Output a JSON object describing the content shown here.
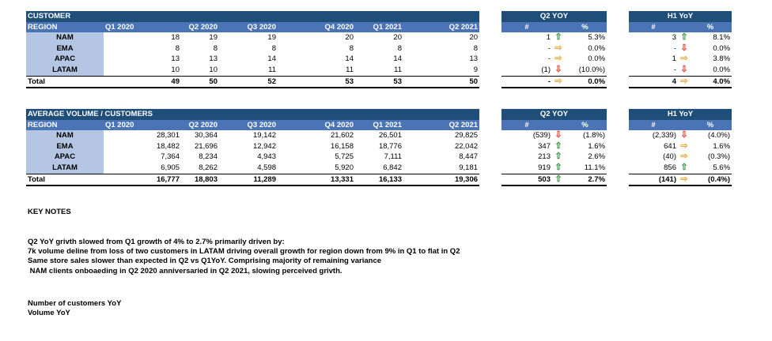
{
  "customer": {
    "title": "CUSTOMER",
    "region_label": "REGION",
    "quarters": [
      "Q1 2020",
      "Q2 2020",
      "Q3 2020",
      "Q4 2020",
      "Q1 2021",
      "Q2 2021"
    ],
    "rows": [
      {
        "region": "NAM",
        "v": [
          "18",
          "19",
          "19",
          "20",
          "20",
          "20"
        ]
      },
      {
        "region": "EMA",
        "v": [
          "8",
          "8",
          "8",
          "8",
          "8",
          "8"
        ]
      },
      {
        "region": "APAC",
        "v": [
          "13",
          "13",
          "14",
          "14",
          "14",
          "13"
        ]
      },
      {
        "region": "LATAM",
        "v": [
          "10",
          "10",
          "11",
          "11",
          "11",
          "9"
        ]
      }
    ],
    "total": {
      "label": "Total",
      "v": [
        "49",
        "50",
        "52",
        "53",
        "53",
        "50"
      ]
    }
  },
  "customer_q2yoy": {
    "title": "Q2 YOY",
    "num_label": "#",
    "pct_label": "%",
    "rows": [
      {
        "n": "1",
        "arrow": "up",
        "p": "5.3%"
      },
      {
        "n": "-",
        "arrow": "right",
        "p": "0.0%"
      },
      {
        "n": "-",
        "arrow": "right",
        "p": "0.0%"
      },
      {
        "n": "(1)",
        "arrow": "down",
        "p": "(10.0%)"
      }
    ],
    "total": {
      "n": "-",
      "arrow": "right",
      "p": "0.0%"
    }
  },
  "customer_h1yoy": {
    "title": "H1 YoY",
    "num_label": "#",
    "pct_label": "%",
    "rows": [
      {
        "n": "3",
        "arrow": "up",
        "p": "8.1%"
      },
      {
        "n": "-",
        "arrow": "down",
        "p": "0.0%"
      },
      {
        "n": "1",
        "arrow": "right",
        "p": "3.8%"
      },
      {
        "n": "-",
        "arrow": "down",
        "p": "0.0%"
      }
    ],
    "total": {
      "n": "4",
      "arrow": "right",
      "p": "4.0%"
    }
  },
  "volume": {
    "title": "AVERAGE VOLUME / CUSTOMERS",
    "region_label": "REGION",
    "quarters": [
      "Q1 2020",
      "Q2 2020",
      "Q3 2020",
      "Q4 2020",
      "Q1 2021",
      "Q2 2021"
    ],
    "rows": [
      {
        "region": "NAM",
        "v": [
          "28,301",
          "30,364",
          "19,142",
          "21,602",
          "26,501",
          "29,825"
        ]
      },
      {
        "region": "EMA",
        "v": [
          "18,482",
          "21,696",
          "12,942",
          "16,158",
          "18,776",
          "22,042"
        ]
      },
      {
        "region": "APAC",
        "v": [
          "7,364",
          "8,234",
          "4,943",
          "5,725",
          "7,111",
          "8,447"
        ]
      },
      {
        "region": "LATAM",
        "v": [
          "6,905",
          "8,262",
          "4,598",
          "5,920",
          "6,842",
          "9,181"
        ]
      }
    ],
    "total": {
      "label": "Total",
      "v": [
        "16,777",
        "18,803",
        "11,289",
        "13,331",
        "16,133",
        "19,306"
      ]
    }
  },
  "volume_q2yoy": {
    "title": "Q2 YOY",
    "num_label": "#",
    "pct_label": "%",
    "rows": [
      {
        "n": "(539)",
        "arrow": "down",
        "p": "(1.8%)"
      },
      {
        "n": "347",
        "arrow": "up",
        "p": "1.6%"
      },
      {
        "n": "213",
        "arrow": "up",
        "p": "2.6%"
      },
      {
        "n": "919",
        "arrow": "up",
        "p": "11.1%"
      }
    ],
    "total": {
      "n": "503",
      "arrow": "up",
      "p": "2.7%"
    }
  },
  "volume_h1yoy": {
    "title": "H1 YoY",
    "num_label": "#",
    "pct_label": "%",
    "rows": [
      {
        "n": "(2,339)",
        "arrow": "down",
        "p": "(4.0%)"
      },
      {
        "n": "641",
        "arrow": "right",
        "p": "1.6%"
      },
      {
        "n": "(40)",
        "arrow": "right",
        "p": "(0.3%)"
      },
      {
        "n": "856",
        "arrow": "up",
        "p": "5.6%"
      }
    ],
    "total": {
      "n": "(141)",
      "arrow": "right",
      "p": "(0.4%)"
    }
  },
  "notes": {
    "title": "KEY NOTES",
    "lines": [
      "Q2 YoY grivth slowed from Q1 growth of 4% to 2.7% primarily driven by:",
      "7k volume deline from loss of two  customers in LATAM driving overall growth for region down from 9% in Q1 to flat in Q2",
      "Same store sales slower than expected in Q2 vs Q1YoY. Comprising majority of remaining variance",
      " NAM clients onboaeding in Q2 2020 anniversaried in Q2 2021, slowing perceived grivth."
    ],
    "footer": [
      "Number of customers YoY",
      "Volume YoY"
    ]
  },
  "colors": {
    "header": "#1f4e79",
    "subheader": "#4a74b6",
    "region_cell": "#b4c6e4",
    "up": "#2e8b3a",
    "down": "#e03a2c",
    "flat": "#f2a52c"
  },
  "icons": {
    "up": "up-arrow-icon",
    "down": "down-arrow-icon",
    "right": "right-arrow-icon"
  }
}
